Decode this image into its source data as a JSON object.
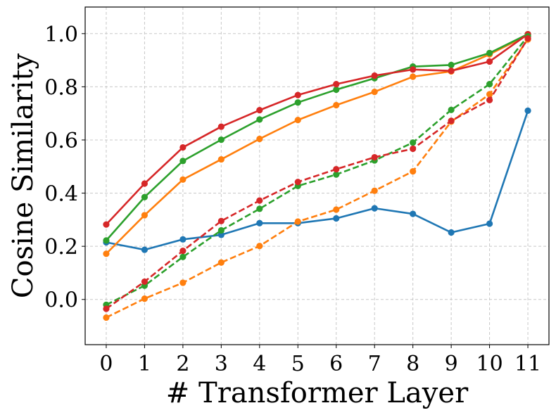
{
  "chart_data": {
    "type": "line",
    "xlabel": "# Transformer Layer",
    "ylabel": "Cosine Similarity",
    "x": [
      0,
      1,
      2,
      3,
      4,
      5,
      6,
      7,
      8,
      9,
      10,
      11
    ],
    "xlim": [
      -0.55,
      11.55
    ],
    "ylim": [
      -0.17,
      1.1
    ],
    "yticks": [
      0.0,
      0.2,
      0.4,
      0.6,
      0.8,
      1.0
    ],
    "ytick_labels": [
      "0.0",
      "0.2",
      "0.4",
      "0.6",
      "0.8",
      "1.0"
    ],
    "xtick_labels": [
      "0",
      "1",
      "2",
      "3",
      "4",
      "5",
      "6",
      "7",
      "8",
      "9",
      "10",
      "11"
    ],
    "grid": true,
    "series": [
      {
        "color": "#1f77b4",
        "style": "solid",
        "values": [
          0.215,
          0.187,
          0.226,
          0.243,
          0.287,
          0.287,
          0.305,
          0.343,
          0.322,
          0.252,
          0.285,
          0.71
        ]
      },
      {
        "color": "#ff7f0e",
        "style": "solid",
        "values": [
          0.172,
          0.317,
          0.451,
          0.527,
          0.604,
          0.675,
          0.731,
          0.781,
          0.838,
          0.858,
          0.922,
          0.995
        ]
      },
      {
        "color": "#2ca02c",
        "style": "solid",
        "values": [
          0.222,
          0.385,
          0.521,
          0.601,
          0.677,
          0.741,
          0.789,
          0.832,
          0.876,
          0.882,
          0.927,
          0.998
        ]
      },
      {
        "color": "#d62728",
        "style": "solid",
        "values": [
          0.282,
          0.436,
          0.572,
          0.65,
          0.712,
          0.769,
          0.81,
          0.842,
          0.865,
          0.86,
          0.895,
          0.998
        ]
      },
      {
        "color": "#ff7f0e",
        "style": "dashed",
        "values": [
          -0.068,
          0.003,
          0.063,
          0.139,
          0.201,
          0.293,
          0.338,
          0.409,
          0.482,
          0.669,
          0.772,
          0.978
        ]
      },
      {
        "color": "#2ca02c",
        "style": "dashed",
        "values": [
          -0.02,
          0.052,
          0.16,
          0.26,
          0.341,
          0.427,
          0.47,
          0.523,
          0.59,
          0.713,
          0.81,
          0.99
        ]
      },
      {
        "color": "#d62728",
        "style": "dashed",
        "values": [
          -0.035,
          0.067,
          0.183,
          0.295,
          0.372,
          0.442,
          0.49,
          0.535,
          0.567,
          0.672,
          0.75,
          0.982
        ]
      }
    ]
  }
}
